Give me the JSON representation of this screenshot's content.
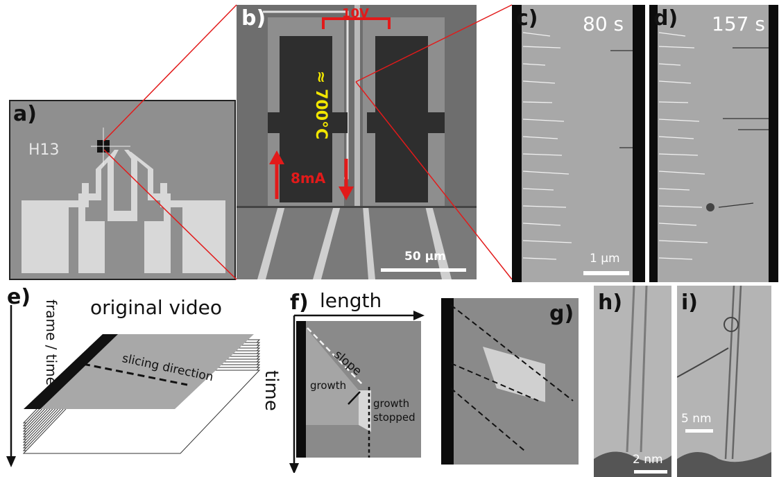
{
  "panels": {
    "a": {
      "label": "a)",
      "chip_text": "H13"
    },
    "b": {
      "label": "b)",
      "voltage": "10V",
      "temperature": "≈ 700°C",
      "current": "8mA",
      "scalebar": "50 µm"
    },
    "c": {
      "label": "c)",
      "time": "80 s",
      "scalebar": "1 µm"
    },
    "d": {
      "label": "d)",
      "time": "157 s"
    },
    "e": {
      "label": "e)",
      "title": "original video",
      "axis_label": "frame / time",
      "slicing": "slicing direction"
    },
    "f": {
      "label": "f)",
      "x_axis": "length",
      "y_axis": "time",
      "slope": "slope",
      "growth": "growth",
      "growth_stopped_1": "growth",
      "growth_stopped_2": "stopped"
    },
    "g": {
      "label": "g)"
    },
    "h": {
      "label": "h)",
      "scalebar": "2 nm"
    },
    "i": {
      "label": "i)",
      "scalebar": "5 nm"
    }
  },
  "colors": {
    "accent_red": "#e21a1a",
    "temp_yellow": "#f2e600",
    "sem_gray": "#9c9c9c"
  }
}
